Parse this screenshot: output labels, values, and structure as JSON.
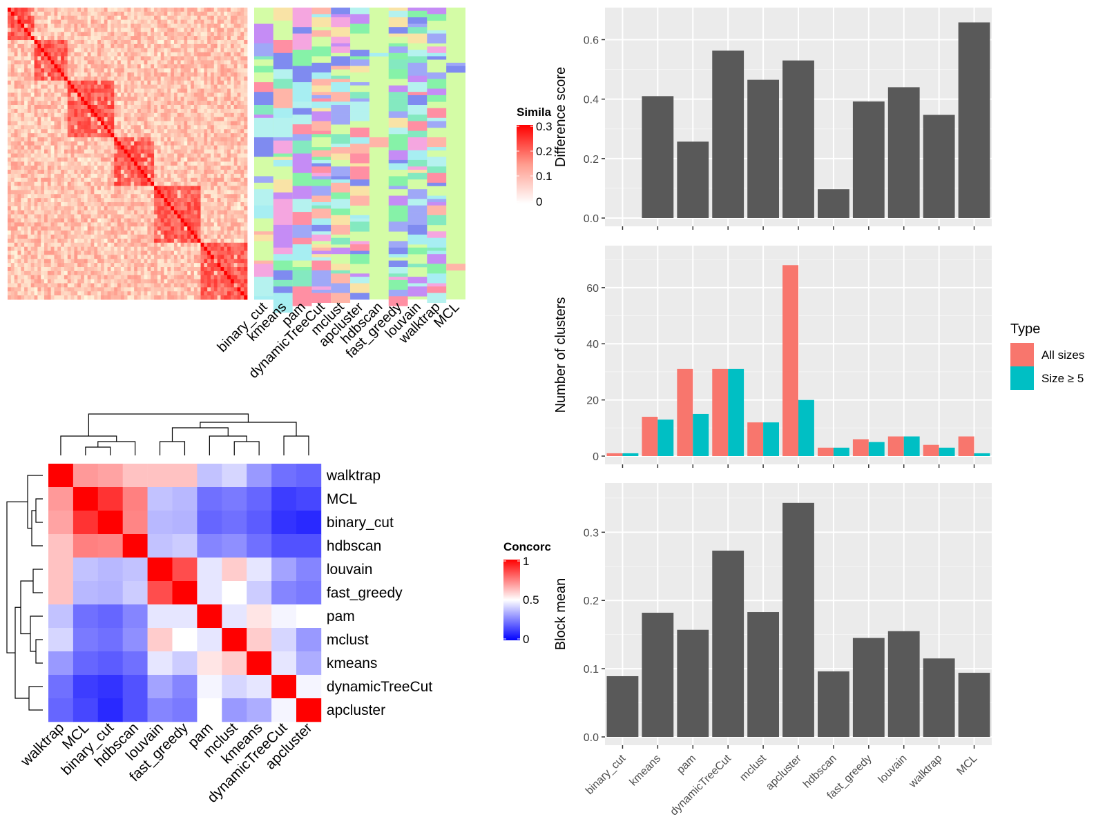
{
  "colors": {
    "panel_bg": "#EBEBEB",
    "bar_gray": "#595959",
    "all_sizes": "#F8766D",
    "size_ge5": "#00BFC4",
    "heat_red": "#FF0000",
    "heat_blue": "#0000FF",
    "clust_bg": "#D4FCA6"
  },
  "similarity_legend": {
    "title": "Simila",
    "ticks": [
      "0.3",
      "0.2",
      "0.1",
      "0"
    ]
  },
  "concordance_legend": {
    "title": "Concorc",
    "ticks": [
      "1",
      "0.5",
      "0"
    ]
  },
  "cluster_methods": [
    "binary_cut",
    "kmeans",
    "pam",
    "dynamicTreeCut",
    "mclust",
    "apcluster",
    "hdbscan",
    "fast_greedy",
    "louvain",
    "walktrap",
    "MCL"
  ],
  "concordance": {
    "order": [
      "walktrap",
      "MCL",
      "binary_cut",
      "hdbscan",
      "louvain",
      "fast_greedy",
      "pam",
      "mclust",
      "kmeans",
      "dynamicTreeCut",
      "apcluster"
    ],
    "matrix": [
      [
        1.0,
        0.7,
        0.68,
        0.62,
        0.62,
        0.62,
        0.38,
        0.42,
        0.3,
        0.22,
        0.2
      ],
      [
        0.7,
        1.0,
        0.9,
        0.75,
        0.38,
        0.36,
        0.22,
        0.24,
        0.2,
        0.12,
        0.14
      ],
      [
        0.68,
        0.9,
        1.0,
        0.74,
        0.36,
        0.35,
        0.2,
        0.22,
        0.18,
        0.1,
        0.08
      ],
      [
        0.62,
        0.75,
        0.74,
        1.0,
        0.38,
        0.4,
        0.26,
        0.28,
        0.22,
        0.16,
        0.16
      ],
      [
        0.62,
        0.38,
        0.36,
        0.38,
        1.0,
        0.85,
        0.45,
        0.6,
        0.45,
        0.32,
        0.26
      ],
      [
        0.62,
        0.36,
        0.35,
        0.4,
        0.85,
        1.0,
        0.45,
        0.5,
        0.4,
        0.26,
        0.24
      ],
      [
        0.38,
        0.22,
        0.2,
        0.26,
        0.45,
        0.45,
        1.0,
        0.45,
        0.55,
        0.48,
        0.5
      ],
      [
        0.42,
        0.24,
        0.22,
        0.28,
        0.6,
        0.5,
        0.45,
        1.0,
        0.6,
        0.42,
        0.3
      ],
      [
        0.3,
        0.2,
        0.18,
        0.22,
        0.45,
        0.4,
        0.55,
        0.6,
        1.0,
        0.45,
        0.34
      ],
      [
        0.22,
        0.12,
        0.1,
        0.16,
        0.32,
        0.26,
        0.48,
        0.42,
        0.45,
        1.0,
        0.48
      ],
      [
        0.2,
        0.14,
        0.08,
        0.16,
        0.26,
        0.24,
        0.5,
        0.3,
        0.34,
        0.48,
        1.0
      ]
    ]
  },
  "chart_data": [
    {
      "type": "bar",
      "categories": [
        "binary_cut",
        "kmeans",
        "pam",
        "dynamicTreeCut",
        "mclust",
        "apcluster",
        "hdbscan",
        "fast_greedy",
        "louvain",
        "walktrap",
        "MCL"
      ],
      "values": [
        0,
        0.41,
        0.257,
        0.563,
        0.465,
        0.53,
        0.097,
        0.392,
        0.44,
        0.347,
        0.658
      ],
      "xlabel": "",
      "ylabel": "Difference score",
      "ylim": [
        0,
        0.68
      ],
      "yticks": [
        0,
        0.2,
        0.4,
        0.6
      ],
      "ytick_labels": [
        "0.0",
        "0.2",
        "0.4",
        "0.6"
      ],
      "grid": true
    },
    {
      "type": "bar",
      "categories": [
        "binary_cut",
        "kmeans",
        "pam",
        "dynamicTreeCut",
        "mclust",
        "apcluster",
        "hdbscan",
        "fast_greedy",
        "louvain",
        "walktrap",
        "MCL"
      ],
      "series": [
        {
          "name": "All sizes",
          "values": [
            1,
            14,
            31,
            31,
            12,
            68,
            3,
            6,
            7,
            4,
            7
          ]
        },
        {
          "name": "Size ≥ 5",
          "values": [
            1,
            13,
            15,
            31,
            12,
            20,
            3,
            5,
            7,
            3,
            1
          ]
        }
      ],
      "xlabel": "",
      "ylabel": "Number of clusters",
      "ylim": [
        0,
        72
      ],
      "yticks": [
        0,
        20,
        40,
        60
      ],
      "ytick_labels": [
        "0",
        "20",
        "40",
        "60"
      ],
      "legend_title": "Type",
      "legend_position": "right",
      "grid": true
    },
    {
      "type": "bar",
      "categories": [
        "binary_cut",
        "kmeans",
        "pam",
        "dynamicTreeCut",
        "mclust",
        "apcluster",
        "hdbscan",
        "fast_greedy",
        "louvain",
        "walktrap",
        "MCL"
      ],
      "values": [
        0.089,
        0.182,
        0.157,
        0.273,
        0.183,
        0.343,
        0.096,
        0.145,
        0.155,
        0.115,
        0.094
      ],
      "xlabel": "",
      "ylabel": "Block mean",
      "ylim": [
        0,
        0.36
      ],
      "yticks": [
        0,
        0.1,
        0.2,
        0.3
      ],
      "ytick_labels": [
        "0.0",
        "0.1",
        "0.2",
        "0.3"
      ],
      "grid": true
    }
  ]
}
